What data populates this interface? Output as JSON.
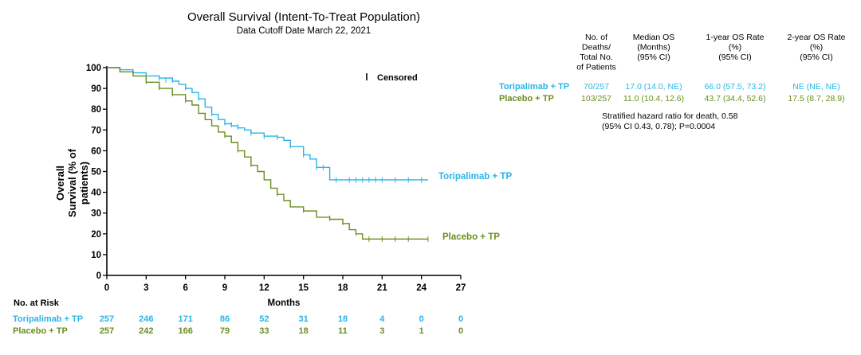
{
  "chart_data": {
    "type": "line",
    "title": "Overall Survival (Intent-To-Treat Population)",
    "subtitle": "Data Cutoff Date March 22, 2021",
    "xlabel": "Months",
    "ylabel": [
      "Overall",
      "Survival (% of",
      "patients)"
    ],
    "xlim": [
      0,
      27
    ],
    "ylim": [
      0,
      100
    ],
    "xticks": [
      0,
      3,
      6,
      9,
      12,
      15,
      18,
      21,
      24,
      27
    ],
    "yticks": [
      0,
      10,
      20,
      30,
      40,
      50,
      60,
      70,
      80,
      90,
      100
    ],
    "censored_legend": "Censored",
    "series": [
      {
        "name": "Toripalimab + TP",
        "color": "#29b5e6",
        "label": "Toripalimab + TP",
        "points": [
          [
            0,
            100
          ],
          [
            1,
            99
          ],
          [
            2,
            97.5
          ],
          [
            3,
            96
          ],
          [
            4,
            95
          ],
          [
            5,
            93.5
          ],
          [
            5.5,
            92
          ],
          [
            6,
            90
          ],
          [
            6.5,
            88
          ],
          [
            7,
            85
          ],
          [
            7.5,
            81
          ],
          [
            8,
            77.5
          ],
          [
            8.5,
            75
          ],
          [
            9,
            73
          ],
          [
            9.5,
            72
          ],
          [
            10,
            71
          ],
          [
            10.5,
            70
          ],
          [
            11,
            68.5
          ],
          [
            12,
            67
          ],
          [
            13,
            66.5
          ],
          [
            13.5,
            65
          ],
          [
            14,
            62
          ],
          [
            15,
            58
          ],
          [
            15.5,
            56
          ],
          [
            16,
            52
          ],
          [
            16.8,
            52
          ],
          [
            17,
            46
          ],
          [
            24.5,
            46
          ]
        ],
        "censors": [
          [
            4,
            95
          ],
          [
            4.5,
            94
          ],
          [
            5,
            94
          ],
          [
            6,
            90.5
          ],
          [
            7,
            85.5
          ],
          [
            8,
            78
          ],
          [
            9,
            73.5
          ],
          [
            9.5,
            72.5
          ],
          [
            10,
            71.5
          ],
          [
            11,
            68.5
          ],
          [
            12,
            67
          ],
          [
            13,
            66.5
          ],
          [
            14,
            62.5
          ],
          [
            15,
            58
          ],
          [
            16,
            52
          ],
          [
            16.5,
            52
          ],
          [
            17.5,
            46
          ],
          [
            18.5,
            46
          ],
          [
            19,
            46
          ],
          [
            19.5,
            46
          ],
          [
            20,
            46
          ],
          [
            20.5,
            46
          ],
          [
            21,
            46
          ],
          [
            22,
            46
          ],
          [
            23,
            46
          ],
          [
            24,
            46
          ]
        ],
        "at_risk": [
          257,
          246,
          171,
          86,
          52,
          31,
          18,
          4,
          0,
          0
        ]
      },
      {
        "name": "Placebo + TP",
        "color": "#6b8e1f",
        "label": "Placebo + TP",
        "points": [
          [
            0,
            100
          ],
          [
            1,
            98
          ],
          [
            2,
            96
          ],
          [
            3,
            93
          ],
          [
            4,
            90
          ],
          [
            5,
            87
          ],
          [
            6,
            84
          ],
          [
            6.5,
            82
          ],
          [
            7,
            78
          ],
          [
            7.5,
            75
          ],
          [
            8,
            72
          ],
          [
            8.5,
            69
          ],
          [
            9,
            67
          ],
          [
            9.5,
            64
          ],
          [
            10,
            60
          ],
          [
            10.5,
            57
          ],
          [
            11,
            53
          ],
          [
            11.5,
            50
          ],
          [
            12,
            46
          ],
          [
            12.5,
            42
          ],
          [
            13,
            39
          ],
          [
            13.5,
            36
          ],
          [
            14,
            33
          ],
          [
            15,
            31
          ],
          [
            16,
            28
          ],
          [
            17,
            27
          ],
          [
            18,
            25
          ],
          [
            18.5,
            22
          ],
          [
            19,
            20
          ],
          [
            19.5,
            17.5
          ],
          [
            24.5,
            17.5
          ]
        ],
        "censors": [
          [
            3,
            93.5
          ],
          [
            4,
            90.5
          ],
          [
            5,
            87.5
          ],
          [
            6,
            84.5
          ],
          [
            9,
            67.5
          ],
          [
            10,
            60.5
          ],
          [
            11,
            53.5
          ],
          [
            13,
            39.5
          ],
          [
            15,
            31.5
          ],
          [
            17,
            27.5
          ],
          [
            18,
            25.5
          ],
          [
            19,
            20.5
          ],
          [
            20,
            17.5
          ],
          [
            21,
            17.5
          ],
          [
            22,
            17.5
          ],
          [
            23,
            17.5
          ],
          [
            24.5,
            17.5
          ]
        ],
        "at_risk": [
          257,
          242,
          166,
          79,
          33,
          18,
          11,
          3,
          1,
          0
        ]
      }
    ],
    "at_risk_label": "No. at Risk",
    "at_risk_months": [
      0,
      3,
      6,
      9,
      12,
      15,
      18,
      21,
      24,
      27
    ]
  },
  "table": {
    "headers": [
      [
        "No. of",
        "Deaths/",
        "Total No.",
        "of Patients"
      ],
      [
        "Median OS",
        "(Months)",
        "(95% CI)"
      ],
      [
        "1-year  OS Rate",
        "(%)",
        "(95% CI)"
      ],
      [
        "2-year OS Rate",
        "(%)",
        "(95% CI)"
      ]
    ],
    "rows": [
      {
        "arm": "Toripalimab + TP",
        "color": "#29b5e6",
        "cells": [
          "70/257",
          "17.0 (14.0, NE)",
          "66.0 (57.5, 73.2)",
          "NE (NE, NE)"
        ]
      },
      {
        "arm": "Placebo + TP",
        "color": "#6b8e1f",
        "cells": [
          "103/257",
          "11.0 (10.4, 12.6)",
          "43.7 (34.4, 52.6)",
          "17.5 (8.7, 28.9)"
        ]
      }
    ],
    "note_line1": "Stratified hazard ratio for death, 0.58",
    "note_line2": "(95% CI 0.43, 0.78); P=0.0004"
  }
}
